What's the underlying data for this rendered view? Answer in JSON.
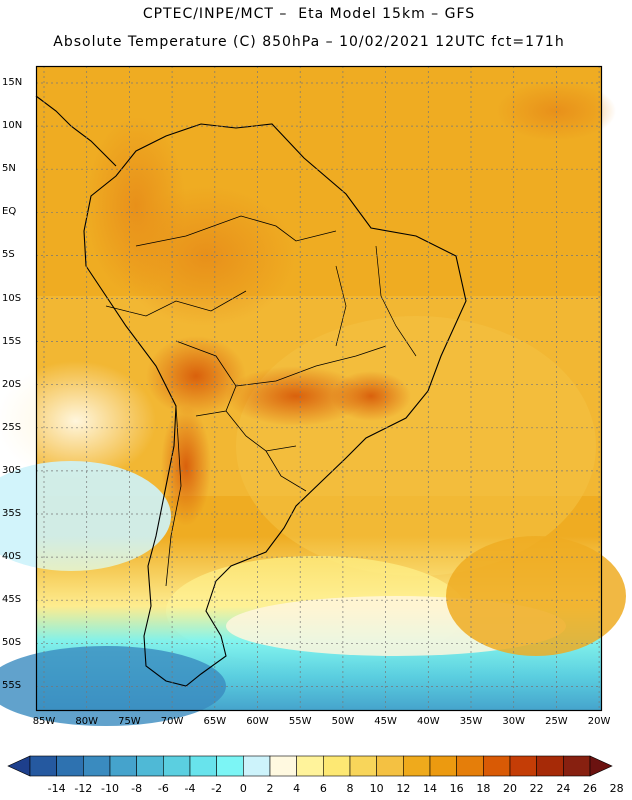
{
  "title_line1": "CPTEC/INPE/MCT –  Eta Model 15km – GFS",
  "title_line2": "Absolute Temperature (C) 850hPa – 10/02/2021 12UTC fct=171h",
  "lat_labels": [
    "15N",
    "10N",
    "5N",
    "EQ",
    "5S",
    "10S",
    "15S",
    "20S",
    "25S",
    "30S",
    "35S",
    "40S",
    "45S",
    "50S",
    "55S"
  ],
  "lon_labels": [
    "85W",
    "80W",
    "75W",
    "70W",
    "65W",
    "60W",
    "55W",
    "50W",
    "45W",
    "40W",
    "35W",
    "30W",
    "25W",
    "20W"
  ],
  "colorbar": {
    "tick_labels": [
      "-14",
      "-12",
      "-10",
      "-8",
      "-6",
      "-4",
      "-2",
      "0",
      "2",
      "4",
      "6",
      "8",
      "10",
      "12",
      "14",
      "16",
      "18",
      "20",
      "22",
      "24",
      "26",
      "28"
    ],
    "colors": [
      "#1d3f8c",
      "#2559a0",
      "#2e72b0",
      "#3a8bbf",
      "#45a3cc",
      "#4fb9d6",
      "#5bcfe0",
      "#68e3ec",
      "#7cf5f5",
      "#cdf3fb",
      "#fff9e0",
      "#fff39b",
      "#fde873",
      "#f8d55a",
      "#f4c142",
      "#efaa1c",
      "#ec9a10",
      "#e57e0a",
      "#d95a05",
      "#c43d06",
      "#a62a07",
      "#872010",
      "#6b1210"
    ]
  }
}
